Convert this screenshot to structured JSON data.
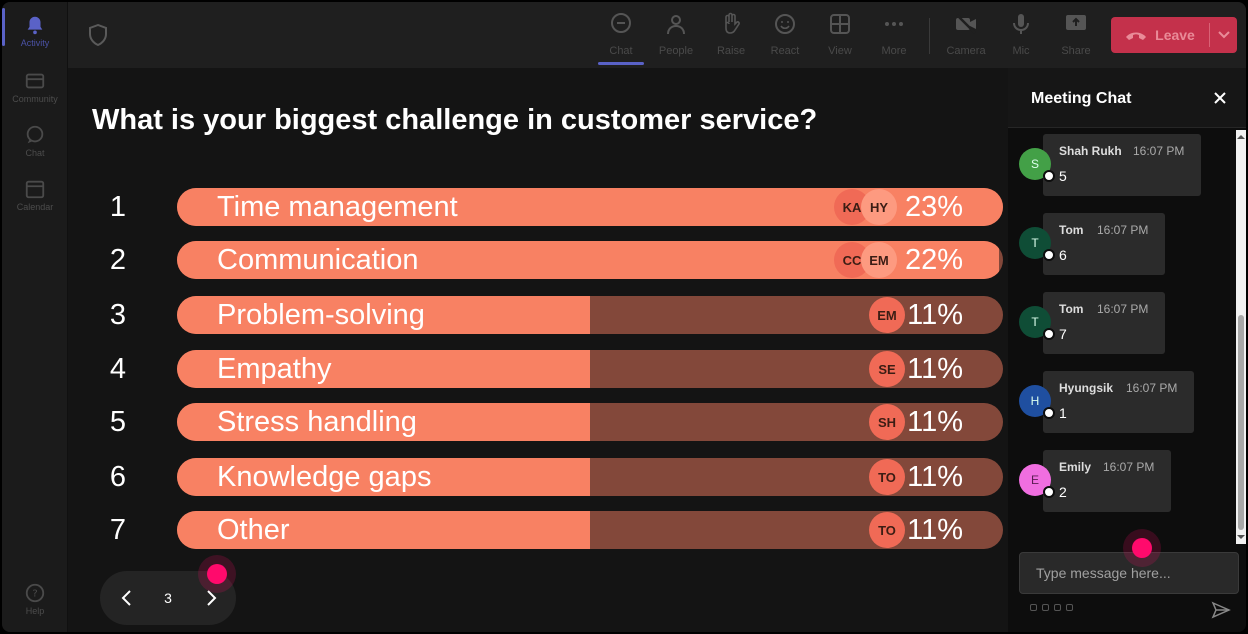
{
  "rail": {
    "items": [
      {
        "label": "Activity",
        "icon": "bell-icon"
      },
      {
        "label": "Community",
        "icon": "community-icon"
      },
      {
        "label": "Chat",
        "icon": "chat-icon"
      },
      {
        "label": "Calendar",
        "icon": "calendar-icon"
      },
      {
        "label": "Help",
        "icon": "help-icon"
      }
    ]
  },
  "toolbar": {
    "chat": "Chat",
    "people": "People",
    "raise": "Raise",
    "react": "React",
    "view": "View",
    "more": "More",
    "camera": "Camera",
    "mic": "Mic",
    "share": "Share",
    "leave": "Leave"
  },
  "poll": {
    "question": "What is your biggest challenge in customer service?",
    "options": [
      {
        "num": "1",
        "label": "Time management",
        "percent": "23%",
        "fill": 1.0,
        "avatars": [
          "KA",
          "HY"
        ]
      },
      {
        "num": "2",
        "label": "Communication",
        "percent": "22%",
        "fill": 0.995,
        "avatars": [
          "CC",
          "EM"
        ]
      },
      {
        "num": "3",
        "label": "Problem-solving",
        "percent": "11%",
        "fill": 0.5,
        "avatars": [
          "EM"
        ]
      },
      {
        "num": "4",
        "label": "Empathy",
        "percent": "11%",
        "fill": 0.5,
        "avatars": [
          "SE"
        ]
      },
      {
        "num": "5",
        "label": "Stress handling",
        "percent": "11%",
        "fill": 0.5,
        "avatars": [
          "SH"
        ]
      },
      {
        "num": "6",
        "label": "Knowledge gaps",
        "percent": "11%",
        "fill": 0.5,
        "avatars": [
          "TO"
        ]
      },
      {
        "num": "7",
        "label": "Other",
        "percent": "11%",
        "fill": 0.5,
        "avatars": [
          "TO"
        ]
      }
    ],
    "page": "3"
  },
  "chat": {
    "title": "Meeting Chat",
    "messages": [
      {
        "initial": "S",
        "name": "Shah Rukh",
        "time": "16:07 PM",
        "text": "5",
        "color": "#43a047"
      },
      {
        "initial": "T",
        "name": "Tom",
        "time": "16:07 PM",
        "text": "6",
        "color": "#0f4d36"
      },
      {
        "initial": "T",
        "name": "Tom",
        "time": "16:07 PM",
        "text": "7",
        "color": "#0f4d36"
      },
      {
        "initial": "H",
        "name": "Hyungsik",
        "time": "16:07 PM",
        "text": "1",
        "color": "#1f4fa0"
      },
      {
        "initial": "E",
        "name": "Emily",
        "time": "16:07 PM",
        "text": "2",
        "color": "#f06ee0"
      }
    ],
    "input_placeholder": "Type message here..."
  },
  "colors": {
    "accent": "#5a62c7",
    "leave": "#c4314b",
    "bar_fill": "#f88163",
    "bar_track": "#83483a",
    "cursor": "#ff0a6c"
  }
}
